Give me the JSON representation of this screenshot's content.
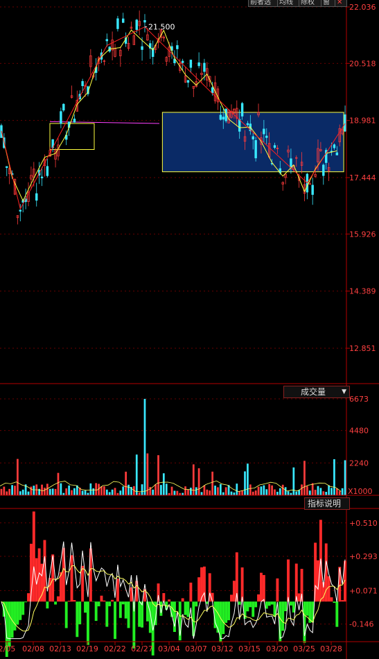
{
  "toolbar": {
    "tabs": [
      "前者选",
      "均线",
      "除权",
      "窗"
    ],
    "close_icon": "close-icon"
  },
  "price_axis": {
    "ticks": [
      "22.036",
      "20.518",
      "18.981",
      "17.444",
      "15.926",
      "14.389",
      "12.851"
    ],
    "peak_label": "21.500"
  },
  "volume_panel": {
    "title": "成交量",
    "ticks": [
      "6673",
      "4480",
      "2240"
    ],
    "unit": "X1000"
  },
  "indicator_panel": {
    "title": "指标说明",
    "ticks": [
      "+0.510",
      "+0.293",
      "+0.071",
      "-0.146"
    ]
  },
  "x_axis": {
    "dates": [
      "2/05",
      "02/08",
      "02/13",
      "02/19",
      "02/22",
      "02/27",
      "03/04",
      "03/07",
      "03/12",
      "03/15",
      "03/20",
      "03/25",
      "03/28"
    ]
  },
  "chart_data": {
    "type": "candlestick",
    "price_range": [
      11.9,
      22.036
    ],
    "volume_range": [
      0,
      6673
    ],
    "indicator_range": [
      -0.26,
      0.59
    ],
    "zigzag_points": [
      {
        "date": "02/05",
        "price": 18.7
      },
      {
        "date": "02/07",
        "price": 16.6
      },
      {
        "date": "02/21",
        "price": 21.0
      },
      {
        "date": "02/27",
        "price": 21.5
      },
      {
        "date": "03/12",
        "price": 19.2
      },
      {
        "date": "03/22",
        "price": 17.3
      },
      {
        "date": "03/28",
        "price": 18.9
      }
    ],
    "box": {
      "start": "03/01",
      "end": "03/28",
      "top": 19.2,
      "bottom": 17.6
    }
  },
  "colors": {
    "up": "#ff3b3b",
    "down": "#39e8ff",
    "axis": "#b40000",
    "zigzag": "#ff2020",
    "trend": "#ffff40",
    "box_fill": "#0a2a66",
    "macd_pos": "#ff2a2a",
    "macd_neg": "#22ee22",
    "dif": "#ffffff",
    "dea": "#ffff60",
    "ma": "#ff40ff"
  }
}
